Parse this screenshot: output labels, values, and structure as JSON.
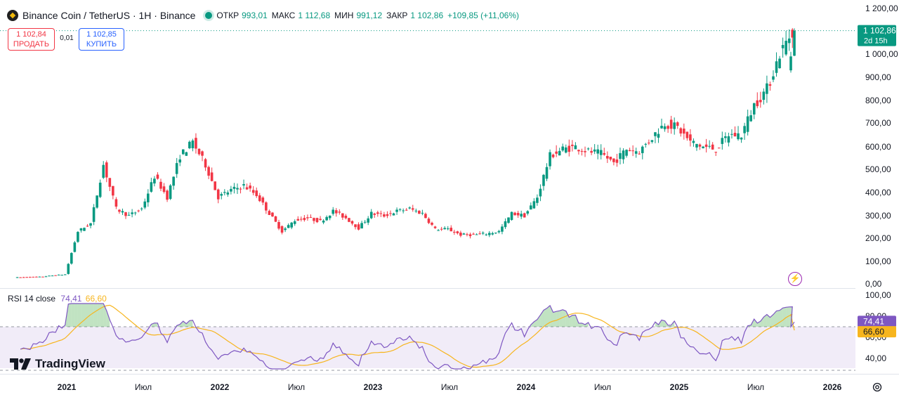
{
  "header": {
    "symbol_title": "Binance Coin / TetherUS · 1H · Binance",
    "open_label": "ОТКР",
    "open_value": "993,01",
    "high_label": "МАКС",
    "high_value": "1 112,68",
    "low_label": "МИН",
    "low_value": "991,12",
    "close_label": "ЗАКР",
    "close_value": "1 102,86",
    "change_value": "+109,85 (+11,06%)"
  },
  "trade": {
    "sell_price": "1 102,84",
    "sell_label": "ПРОДАТЬ",
    "spread": "0,01",
    "buy_price": "1 102,85",
    "buy_label": "КУПИТЬ"
  },
  "last_price": {
    "value": "1 102,86",
    "countdown": "2d 15h"
  },
  "rsi": {
    "label": "RSI 14 close",
    "value": "74,41",
    "ma_value": "66,60",
    "axis_ticks": [
      "100,00",
      "80,00",
      "60,00",
      "40,00"
    ]
  },
  "price_axis_ticks": [
    "1 200,00",
    "1 000,00",
    "900,00",
    "800,00",
    "700,00",
    "600,00",
    "500,00",
    "400,00",
    "300,00",
    "200,00",
    "100,00",
    "0,00"
  ],
  "time_axis_ticks": [
    "2021",
    "Июл",
    "2022",
    "Июл",
    "2023",
    "Июл",
    "2024",
    "Июл",
    "2025",
    "Июл",
    "2026"
  ],
  "brand": {
    "name": "TradingView"
  },
  "colors": {
    "up": "#089981",
    "down": "#f23645",
    "rsi_line": "#7e57c2",
    "rsi_ma": "#f7b51e",
    "rsi_band": "#ede7f6"
  },
  "chart_data": [
    {
      "type": "candlestick",
      "title": "Binance Coin / TetherUS · 1H · Binance",
      "y_scale": "log",
      "ylim": [
        0,
        1200
      ],
      "x_ticks": [
        "2021",
        "Июл",
        "2022",
        "Июл",
        "2023",
        "Июл",
        "2024",
        "Июл",
        "2025",
        "Июл",
        "2026"
      ],
      "y_ticks": [
        1200,
        1000,
        900,
        800,
        700,
        600,
        500,
        400,
        300,
        200,
        100,
        0
      ],
      "last_close": 1102.86,
      "approx_close_series": [
        {
          "date": "2020-09",
          "close": 28
        },
        {
          "date": "2020-10",
          "close": 30
        },
        {
          "date": "2020-11",
          "close": 31
        },
        {
          "date": "2020-12",
          "close": 37
        },
        {
          "date": "2021-01",
          "close": 42
        },
        {
          "date": "2021-02",
          "close": 230
        },
        {
          "date": "2021-03",
          "close": 265
        },
        {
          "date": "2021-04",
          "close": 520
        },
        {
          "date": "2021-05",
          "close": 330
        },
        {
          "date": "2021-06",
          "close": 300
        },
        {
          "date": "2021-07",
          "close": 330
        },
        {
          "date": "2021-08",
          "close": 470
        },
        {
          "date": "2021-09",
          "close": 380
        },
        {
          "date": "2021-10",
          "close": 560
        },
        {
          "date": "2021-11",
          "close": 620
        },
        {
          "date": "2021-12",
          "close": 520
        },
        {
          "date": "2022-01",
          "close": 380
        },
        {
          "date": "2022-02",
          "close": 410
        },
        {
          "date": "2022-03",
          "close": 430
        },
        {
          "date": "2022-04",
          "close": 390
        },
        {
          "date": "2022-05",
          "close": 310
        },
        {
          "date": "2022-06",
          "close": 230
        },
        {
          "date": "2022-07",
          "close": 280
        },
        {
          "date": "2022-08",
          "close": 290
        },
        {
          "date": "2022-09",
          "close": 275
        },
        {
          "date": "2022-10",
          "close": 320
        },
        {
          "date": "2022-11",
          "close": 290
        },
        {
          "date": "2022-12",
          "close": 245
        },
        {
          "date": "2023-01",
          "close": 310
        },
        {
          "date": "2023-02",
          "close": 300
        },
        {
          "date": "2023-03",
          "close": 320
        },
        {
          "date": "2023-04",
          "close": 330
        },
        {
          "date": "2023-05",
          "close": 310
        },
        {
          "date": "2023-06",
          "close": 240
        },
        {
          "date": "2023-07",
          "close": 240
        },
        {
          "date": "2023-08",
          "close": 215
        },
        {
          "date": "2023-09",
          "close": 215
        },
        {
          "date": "2023-10",
          "close": 220
        },
        {
          "date": "2023-11",
          "close": 230
        },
        {
          "date": "2023-12",
          "close": 310
        },
        {
          "date": "2024-01",
          "close": 300
        },
        {
          "date": "2024-02",
          "close": 380
        },
        {
          "date": "2024-03",
          "close": 560
        },
        {
          "date": "2024-04",
          "close": 590
        },
        {
          "date": "2024-05",
          "close": 600
        },
        {
          "date": "2024-06",
          "close": 580
        },
        {
          "date": "2024-07",
          "close": 570
        },
        {
          "date": "2024-08",
          "close": 530
        },
        {
          "date": "2024-09",
          "close": 590
        },
        {
          "date": "2024-10",
          "close": 580
        },
        {
          "date": "2024-11",
          "close": 640
        },
        {
          "date": "2024-12",
          "close": 700
        },
        {
          "date": "2025-01",
          "close": 680
        },
        {
          "date": "2025-02",
          "close": 620
        },
        {
          "date": "2025-03",
          "close": 600
        },
        {
          "date": "2025-04",
          "close": 590
        },
        {
          "date": "2025-05",
          "close": 650
        },
        {
          "date": "2025-06",
          "close": 650
        },
        {
          "date": "2025-07",
          "close": 780
        },
        {
          "date": "2025-08",
          "close": 850
        },
        {
          "date": "2025-09",
          "close": 1000
        },
        {
          "date": "2025-10",
          "close": 1102.86
        }
      ]
    },
    {
      "type": "line",
      "title": "RSI 14 close",
      "ylim": [
        20,
        100
      ],
      "y_ticks": [
        100,
        80,
        60,
        40
      ],
      "series": [
        {
          "name": "RSI",
          "last": 74.41
        },
        {
          "name": "RSI MA",
          "last": 66.6
        }
      ]
    }
  ]
}
